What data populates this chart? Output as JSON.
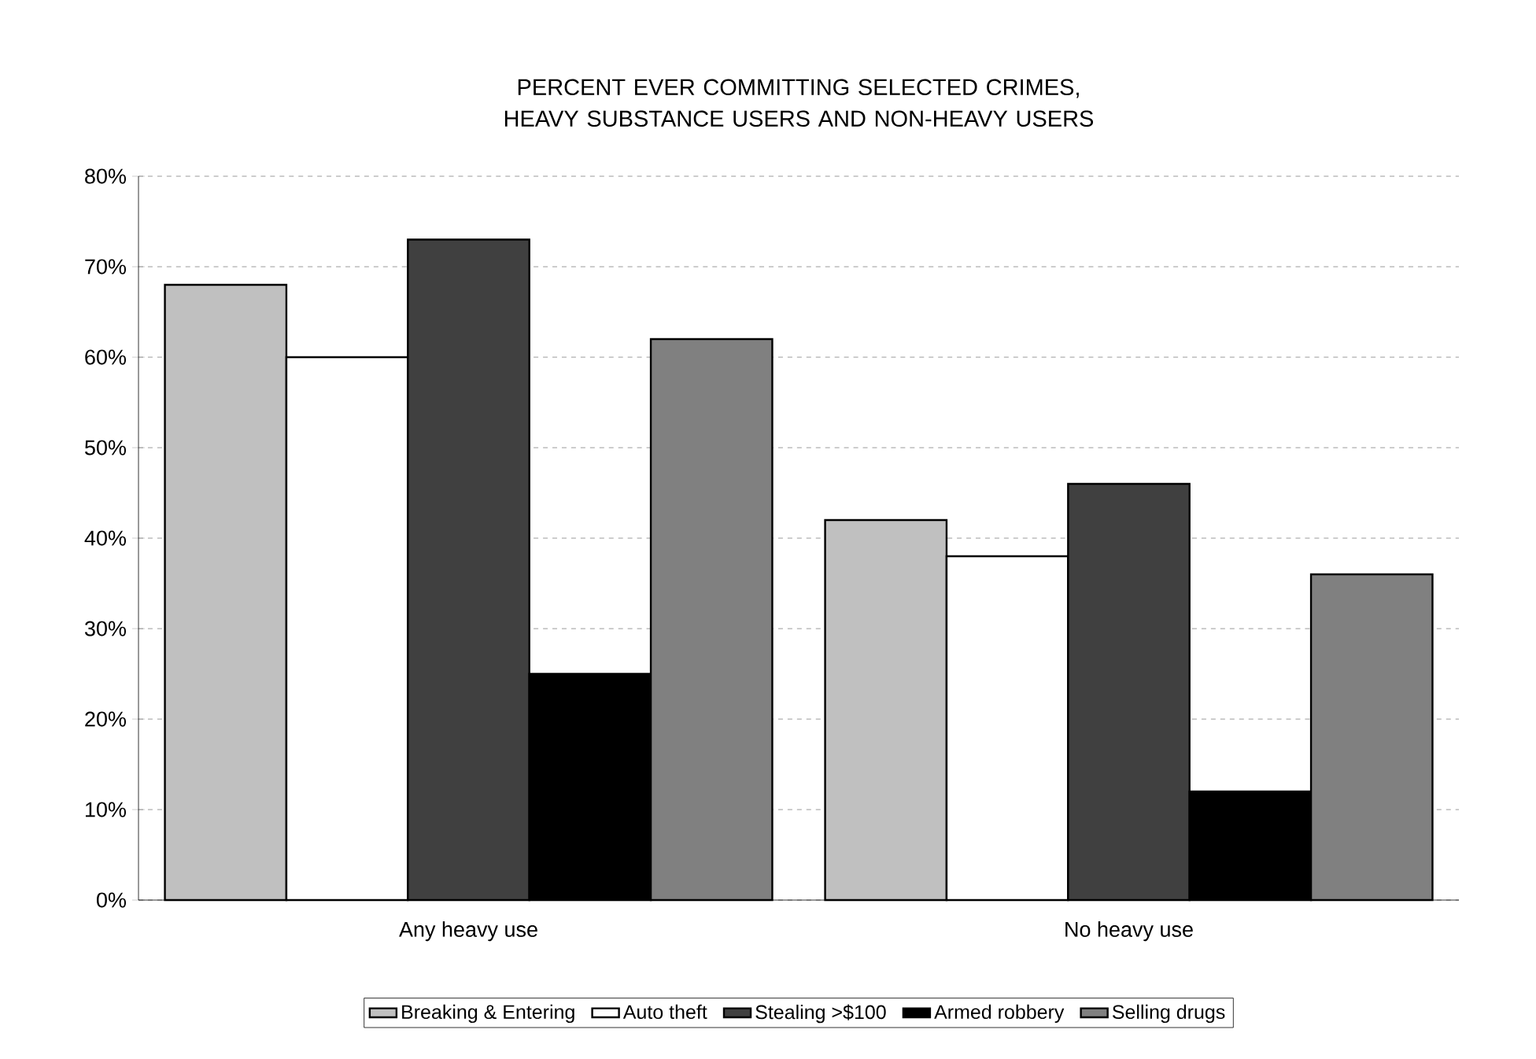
{
  "chart_data": {
    "type": "bar",
    "title": "PERCENT  EVER COMMITTING SELECTED CRIMES, HEAVY SUBSTANCE USERS AND NON-HEAVY USERS",
    "categories": [
      "Any heavy use",
      "No heavy use"
    ],
    "series": [
      {
        "name": "Breaking & Entering",
        "color": "#c0c0c0",
        "values": [
          68,
          42
        ]
      },
      {
        "name": "Auto theft",
        "color": "#ffffff",
        "values": [
          60,
          38
        ]
      },
      {
        "name": "Stealing >$100",
        "color": "#404040",
        "values": [
          73,
          46
        ]
      },
      {
        "name": "Armed robbery",
        "color": "#000000",
        "values": [
          25,
          12
        ]
      },
      {
        "name": "Selling drugs",
        "color": "#808080",
        "values": [
          62,
          36
        ]
      }
    ],
    "ylim": [
      0,
      80
    ],
    "yticks": [
      {
        "value": 0,
        "label": "0%"
      },
      {
        "value": 10,
        "label": "10%"
      },
      {
        "value": 20,
        "label": "20%"
      },
      {
        "value": 30,
        "label": "30%"
      },
      {
        "value": 40,
        "label": "40%"
      },
      {
        "value": 50,
        "label": "50%"
      },
      {
        "value": 60,
        "label": "60%"
      },
      {
        "value": 70,
        "label": "70%"
      },
      {
        "value": 80,
        "label": "80%"
      }
    ],
    "grid": "y",
    "legend": "bottom"
  }
}
